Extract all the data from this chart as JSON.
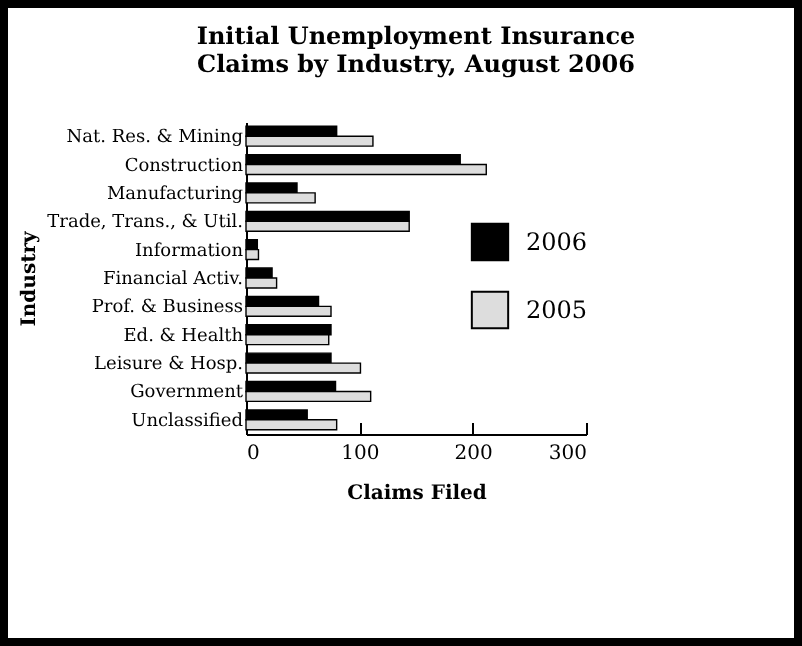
{
  "chart_data": {
    "type": "bar",
    "orientation": "horizontal",
    "title": "Initial Unemployment Insurance Claims by Industry, August 2006",
    "xlabel": "Claims Filed",
    "ylabel": "Industry",
    "categories": [
      "Nat. Res. & Mining",
      "Construction",
      "Manufacturing",
      "Trade, Trans., & Util.",
      "Information",
      "Financial Activ.",
      "Prof. & Business",
      "Ed. & Health",
      "Leisure & Hosp.",
      "Government",
      "Unclassified"
    ],
    "series": [
      {
        "name": "2006",
        "color": "#000000",
        "values": [
          80,
          189,
          45,
          144,
          10,
          23,
          64,
          75,
          75,
          79,
          54
        ]
      },
      {
        "name": "2005",
        "color": "#dddddd",
        "values": [
          112,
          212,
          61,
          144,
          11,
          27,
          75,
          73,
          101,
          110,
          80
        ]
      }
    ],
    "xlim": [
      0,
      300
    ],
    "xticks": [
      0,
      100,
      200,
      300
    ],
    "grid": false,
    "legend": "right"
  }
}
